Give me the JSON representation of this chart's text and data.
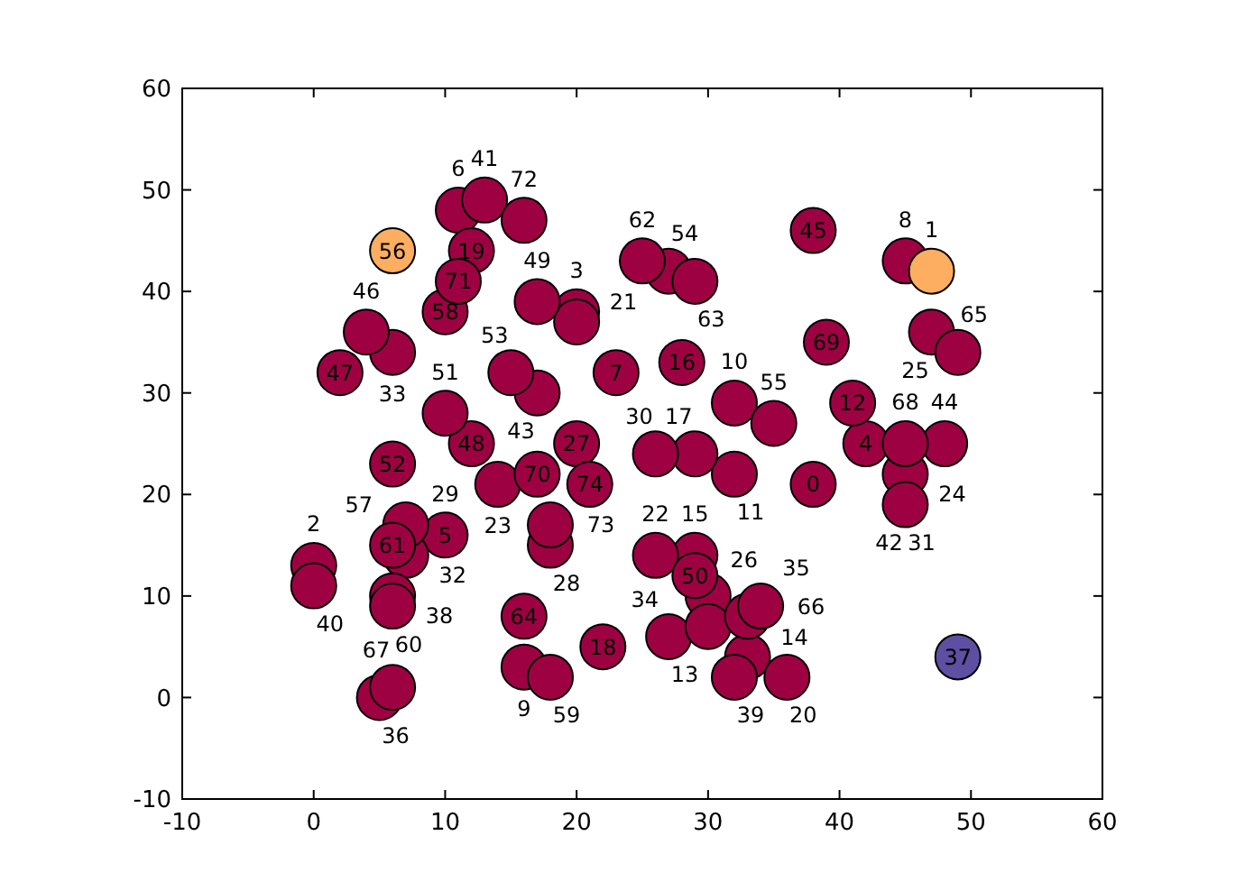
{
  "chart_data": {
    "type": "scatter",
    "marker": "circle",
    "grid": false,
    "xlim": [
      -10,
      60
    ],
    "ylim": [
      -10,
      60
    ],
    "xticks": [
      -10,
      0,
      10,
      20,
      30,
      40,
      50,
      60
    ],
    "yticks": [
      -10,
      0,
      10,
      20,
      30,
      40,
      50,
      60
    ],
    "series": [
      {
        "color": "#9e0142",
        "x": [
          38,
          0,
          20,
          42,
          11,
          23,
          45,
          16,
          32,
          32,
          41,
          27,
          33,
          29,
          28,
          29,
          22,
          12,
          36,
          20,
          26,
          14,
          45,
          47,
          30,
          20,
          18,
          10,
          26,
          45,
          7,
          6,
          30,
          33,
          5,
          6,
          32,
          0,
          13,
          17,
          48,
          38,
          4,
          2,
          12,
          17,
          29,
          10,
          6,
          15,
          27,
          35,
          7,
          10,
          18,
          6,
          6,
          25,
          29,
          16,
          49,
          34,
          6,
          45,
          39,
          17,
          11,
          16,
          18,
          21
        ],
        "values": [
          21,
          13,
          38,
          25,
          48,
          32,
          43,
          3,
          29,
          22,
          29,
          6,
          4,
          14,
          33,
          24,
          5,
          44,
          2,
          37,
          14,
          21,
          22,
          36,
          10,
          25,
          15,
          16,
          24,
          19,
          14,
          34,
          7,
          8,
          0,
          10,
          2,
          11,
          49,
          30,
          25,
          46,
          36,
          32,
          25,
          39,
          12,
          28,
          23,
          32,
          42,
          27,
          17,
          38,
          2,
          9,
          15,
          43,
          41,
          8,
          34,
          9,
          1,
          25,
          35,
          22,
          41,
          47,
          17,
          21
        ]
      },
      {
        "color": "#fdae61",
        "x": [
          47,
          6
        ],
        "values": [
          42,
          44
        ]
      },
      {
        "color": "#5e4fa2",
        "x": [
          49
        ],
        "values": [
          4
        ]
      }
    ],
    "annotations": [
      {
        "text": "0",
        "x": 38,
        "y": 21
      },
      {
        "text": "1",
        "x": 47,
        "y": 42
      },
      {
        "text": "2",
        "x": 0,
        "y": 13
      },
      {
        "text": "3",
        "x": 20,
        "y": 38
      },
      {
        "text": "4",
        "x": 42,
        "y": 25
      },
      {
        "text": "5",
        "x": 10,
        "y": 16
      },
      {
        "text": "6",
        "x": 11,
        "y": 48
      },
      {
        "text": "7",
        "x": 23,
        "y": 32
      },
      {
        "text": "8",
        "x": 45,
        "y": 43
      },
      {
        "text": "9",
        "x": 16,
        "y": 3
      },
      {
        "text": "10",
        "x": 32,
        "y": 29
      },
      {
        "text": "11",
        "x": 32,
        "y": 22
      },
      {
        "text": "12",
        "x": 41,
        "y": 29
      },
      {
        "text": "13",
        "x": 27,
        "y": 6
      },
      {
        "text": "14",
        "x": 33,
        "y": 4
      },
      {
        "text": "15",
        "x": 29,
        "y": 14
      },
      {
        "text": "16",
        "x": 28,
        "y": 33
      },
      {
        "text": "17",
        "x": 29,
        "y": 24
      },
      {
        "text": "18",
        "x": 22,
        "y": 5
      },
      {
        "text": "19",
        "x": 12,
        "y": 44
      },
      {
        "text": "20",
        "x": 36,
        "y": 2
      },
      {
        "text": "21",
        "x": 20,
        "y": 37
      },
      {
        "text": "22",
        "x": 26,
        "y": 14
      },
      {
        "text": "23",
        "x": 14,
        "y": 21
      },
      {
        "text": "24",
        "x": 45,
        "y": 22
      },
      {
        "text": "25",
        "x": 47,
        "y": 36
      },
      {
        "text": "26",
        "x": 30,
        "y": 10
      },
      {
        "text": "27",
        "x": 20,
        "y": 25
      },
      {
        "text": "28",
        "x": 18,
        "y": 15
      },
      {
        "text": "29",
        "x": 10,
        "y": 16
      },
      {
        "text": "30",
        "x": 26,
        "y": 24
      },
      {
        "text": "31",
        "x": 45,
        "y": 19
      },
      {
        "text": "32",
        "x": 7,
        "y": 14
      },
      {
        "text": "33",
        "x": 6,
        "y": 34
      },
      {
        "text": "34",
        "x": 30,
        "y": 7
      },
      {
        "text": "35",
        "x": 33,
        "y": 8
      },
      {
        "text": "36",
        "x": 5,
        "y": 0
      },
      {
        "text": "37",
        "x": 49,
        "y": 4
      },
      {
        "text": "38",
        "x": 6,
        "y": 10
      },
      {
        "text": "39",
        "x": 32,
        "y": 2
      },
      {
        "text": "40",
        "x": 0,
        "y": 11
      },
      {
        "text": "41",
        "x": 13,
        "y": 49
      },
      {
        "text": "42",
        "x": 45,
        "y": 19
      },
      {
        "text": "43",
        "x": 17,
        "y": 30
      },
      {
        "text": "44",
        "x": 48,
        "y": 25
      },
      {
        "text": "45",
        "x": 38,
        "y": 46
      },
      {
        "text": "46",
        "x": 4,
        "y": 36
      },
      {
        "text": "47",
        "x": 2,
        "y": 32
      },
      {
        "text": "48",
        "x": 12,
        "y": 25
      },
      {
        "text": "49",
        "x": 17,
        "y": 39
      },
      {
        "text": "50",
        "x": 29,
        "y": 12
      },
      {
        "text": "51",
        "x": 10,
        "y": 28
      },
      {
        "text": "52",
        "x": 6,
        "y": 23
      },
      {
        "text": "53",
        "x": 15,
        "y": 32
      },
      {
        "text": "54",
        "x": 27,
        "y": 42
      },
      {
        "text": "55",
        "x": 35,
        "y": 27
      },
      {
        "text": "56",
        "x": 6,
        "y": 44
      },
      {
        "text": "57",
        "x": 7,
        "y": 17
      },
      {
        "text": "58",
        "x": 10,
        "y": 38
      },
      {
        "text": "59",
        "x": 18,
        "y": 2
      },
      {
        "text": "60",
        "x": 6,
        "y": 9
      },
      {
        "text": "61",
        "x": 6,
        "y": 15
      },
      {
        "text": "62",
        "x": 25,
        "y": 43
      },
      {
        "text": "63",
        "x": 29,
        "y": 41
      },
      {
        "text": "64",
        "x": 16,
        "y": 8
      },
      {
        "text": "65",
        "x": 49,
        "y": 34
      },
      {
        "text": "66",
        "x": 34,
        "y": 9
      },
      {
        "text": "67",
        "x": 6,
        "y": 1
      },
      {
        "text": "68",
        "x": 45,
        "y": 25
      },
      {
        "text": "69",
        "x": 39,
        "y": 35
      },
      {
        "text": "70",
        "x": 17,
        "y": 22
      },
      {
        "text": "71",
        "x": 11,
        "y": 41
      },
      {
        "text": "72",
        "x": 16,
        "y": 47
      },
      {
        "text": "73",
        "x": 18,
        "y": 17
      },
      {
        "text": "74",
        "x": 21,
        "y": 21
      }
    ]
  }
}
